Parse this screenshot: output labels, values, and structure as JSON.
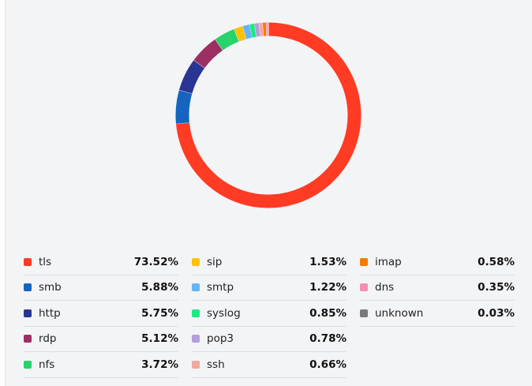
{
  "chart_data": {
    "type": "pie",
    "variant": "donut",
    "series": [
      {
        "name": "tls",
        "value": 73.52,
        "label": "73.52%",
        "color": "#ff3b24"
      },
      {
        "name": "smb",
        "value": 5.88,
        "label": "5.88%",
        "color": "#1565c0"
      },
      {
        "name": "http",
        "value": 5.75,
        "label": "5.75%",
        "color": "#283593"
      },
      {
        "name": "rdp",
        "value": 5.12,
        "label": "5.12%",
        "color": "#9c2f62"
      },
      {
        "name": "nfs",
        "value": 3.72,
        "label": "3.72%",
        "color": "#27d36a"
      },
      {
        "name": "sip",
        "value": 1.53,
        "label": "1.53%",
        "color": "#ffc107"
      },
      {
        "name": "smtp",
        "value": 1.22,
        "label": "1.22%",
        "color": "#64b5f6"
      },
      {
        "name": "syslog",
        "value": 0.85,
        "label": "0.85%",
        "color": "#1de983"
      },
      {
        "name": "pop3",
        "value": 0.78,
        "label": "0.78%",
        "color": "#b39ddb"
      },
      {
        "name": "ssh",
        "value": 0.66,
        "label": "0.66%",
        "color": "#f4a7a0"
      },
      {
        "name": "imap",
        "value": 0.58,
        "label": "0.58%",
        "color": "#f57c00"
      },
      {
        "name": "dns",
        "value": 0.35,
        "label": "0.35%",
        "color": "#f48fb1"
      },
      {
        "name": "unknown",
        "value": 0.03,
        "label": "0.03%",
        "color": "#7a7a7a"
      }
    ],
    "legend_position": "bottom"
  }
}
